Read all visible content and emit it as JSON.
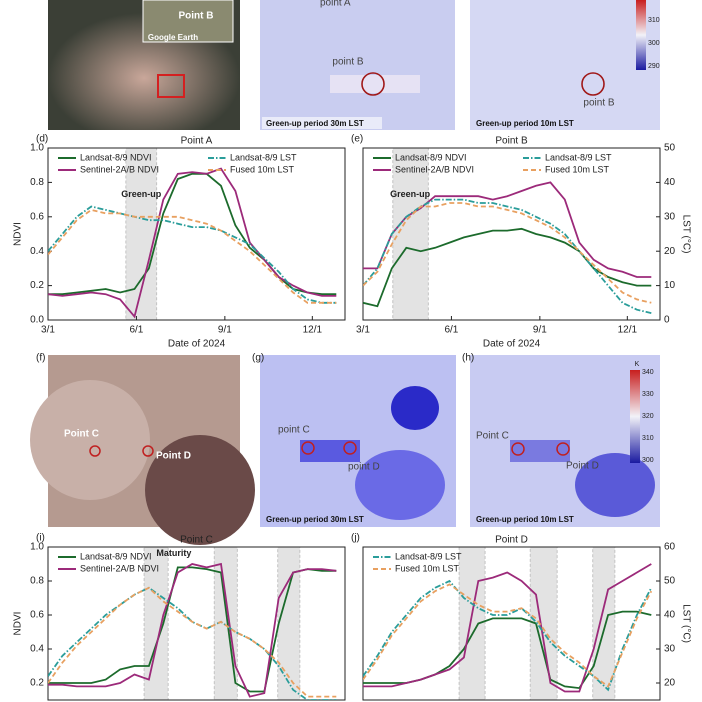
{
  "images": [
    {
      "labels": [
        "Point B",
        "Google Earth"
      ]
    },
    {
      "labels": [
        "point A",
        "point B",
        "Green-up period 30m LST"
      ]
    },
    {
      "labels": [
        "point B",
        "Green-up period 10m LST"
      ],
      "colorbar_ticks": [
        310,
        300,
        290
      ]
    },
    {
      "panel": "(f)",
      "labels": [
        "Point C",
        "Point D"
      ]
    },
    {
      "panel": "(g)",
      "labels": [
        "point C",
        "point D",
        "Green-up period 30m LST"
      ]
    },
    {
      "panel": "(h)",
      "labels": [
        "Point C",
        "Point D",
        "Green-up period 10m LST"
      ],
      "colorbar_unit": "K",
      "colorbar_ticks": [
        340,
        330,
        320,
        310,
        300
      ]
    }
  ],
  "chart_data": [
    {
      "type": "line",
      "panel": "(d)",
      "title": "Point A",
      "x_label": "Date of 2024",
      "y_label": "NDVI",
      "x": [
        61,
        76,
        91,
        106,
        121,
        136,
        151,
        166,
        181,
        196,
        211,
        226,
        241,
        256,
        271,
        286,
        301,
        316,
        331,
        346,
        361
      ],
      "xlim": [
        61,
        370
      ],
      "xticks": [
        {
          "value": 61,
          "label": "3/1"
        },
        {
          "value": 153,
          "label": "6/1"
        },
        {
          "value": 245,
          "label": "9/1"
        },
        {
          "value": 336,
          "label": "12/1"
        }
      ],
      "ylim": [
        0,
        1
      ],
      "yticks": [
        {
          "value": 0,
          "label": "0.0"
        },
        0.2,
        0.4,
        0.6,
        0.8,
        {
          "value": 1,
          "label": "1.0"
        }
      ],
      "y2lim": [
        0,
        50
      ],
      "shaded": [
        [
          142,
          174
        ]
      ],
      "annotations": [
        {
          "text": "Green-up",
          "x": 158,
          "y": 0.73
        }
      ],
      "series": [
        {
          "name": "Landsat-8/9 NDVI",
          "color": "#1c6b2c",
          "dash": "solid",
          "in_legend": true,
          "values": [
            0.15,
            0.15,
            0.16,
            0.17,
            0.18,
            0.16,
            0.18,
            0.3,
            0.62,
            0.82,
            0.85,
            0.85,
            0.78,
            0.55,
            0.42,
            0.35,
            0.25,
            0.18,
            0.16,
            0.15,
            0.15
          ]
        },
        {
          "name": "Sentinel-2A/B NDVI",
          "color": "#9c2a7a",
          "dash": "solid",
          "in_legend": true,
          "values": [
            0.15,
            0.14,
            0.15,
            0.16,
            0.15,
            0.12,
            0.02,
            0.35,
            0.7,
            0.85,
            0.86,
            0.85,
            0.88,
            0.75,
            0.45,
            0.35,
            0.25,
            0.2,
            0.16,
            0.14,
            0.14
          ]
        },
        {
          "name": "Landsat-8/9 LST",
          "color": "#2a9d9a",
          "dash": "dashdot",
          "axis": "y2",
          "in_legend": true,
          "values": [
            20,
            25,
            30,
            33,
            32,
            31,
            30,
            29,
            29,
            28,
            27,
            27,
            26,
            24,
            22,
            18,
            14,
            9,
            6,
            5,
            5
          ]
        },
        {
          "name": "Fused 10m LST",
          "color": "#e8a060",
          "dash": "dash",
          "axis": "y2",
          "in_legend": true,
          "values": [
            19,
            24,
            29,
            32,
            31,
            31,
            30,
            30,
            30,
            30,
            29,
            28,
            26,
            23,
            20,
            16,
            12,
            8,
            5,
            5,
            5
          ]
        }
      ]
    },
    {
      "type": "line",
      "panel": "(e)",
      "title": "Point B",
      "x_label": "Date of 2024",
      "y2_label": "LST (°C)",
      "x": [
        61,
        76,
        91,
        106,
        121,
        136,
        151,
        166,
        181,
        196,
        211,
        226,
        241,
        256,
        271,
        286,
        301,
        316,
        331,
        346,
        361
      ],
      "xlim": [
        61,
        370
      ],
      "xticks": [
        {
          "value": 61,
          "label": "3/1"
        },
        {
          "value": 153,
          "label": "6/1"
        },
        {
          "value": 245,
          "label": "9/1"
        },
        {
          "value": 336,
          "label": "12/1"
        }
      ],
      "ylim": [
        0,
        1
      ],
      "y2lim": [
        0,
        50
      ],
      "y2ticks": [
        0,
        10,
        20,
        30,
        40,
        50
      ],
      "shaded": [
        [
          92,
          129
        ]
      ],
      "annotations": [
        {
          "text": "Green-up",
          "x": 110,
          "y": 0.73
        }
      ],
      "series": [
        {
          "name": "Landsat-8/9 NDVI",
          "color": "#1c6b2c",
          "dash": "solid",
          "in_legend": true,
          "values": [
            0.1,
            0.08,
            0.3,
            0.42,
            0.4,
            0.42,
            0.45,
            0.48,
            0.5,
            0.52,
            0.52,
            0.53,
            0.5,
            0.48,
            0.45,
            0.4,
            0.3,
            0.25,
            0.22,
            0.2,
            0.2
          ]
        },
        {
          "name": "Sentinel-2A/B NDVI",
          "color": "#9c2a7a",
          "dash": "solid",
          "in_legend": true,
          "values": [
            0.3,
            0.3,
            0.5,
            0.6,
            0.65,
            0.72,
            0.72,
            0.72,
            0.72,
            0.7,
            0.72,
            0.75,
            0.78,
            0.8,
            0.7,
            0.45,
            0.35,
            0.3,
            0.28,
            0.25,
            0.25
          ]
        },
        {
          "name": "Landsat-8/9 LST",
          "color": "#2a9d9a",
          "dash": "dashdot",
          "axis": "y2",
          "in_legend": true,
          "values": [
            10,
            15,
            25,
            30,
            33,
            35,
            35,
            35,
            34,
            34,
            33,
            32,
            30,
            28,
            25,
            20,
            15,
            10,
            5,
            3,
            2
          ]
        },
        {
          "name": "Fused 10m LST",
          "color": "#e8a060",
          "dash": "dash",
          "axis": "y2",
          "in_legend": true,
          "values": [
            10,
            14,
            22,
            29,
            33,
            33,
            34,
            34,
            33,
            33,
            32,
            31,
            29,
            27,
            24,
            20,
            16,
            12,
            8,
            6,
            5
          ]
        }
      ]
    },
    {
      "type": "line",
      "panel": "(i)",
      "title": "Point C",
      "y_label": "NDVI",
      "x": [
        61,
        76,
        91,
        106,
        121,
        136,
        151,
        166,
        181,
        196,
        211,
        226,
        241,
        256,
        271,
        286,
        301,
        316,
        331,
        346,
        361
      ],
      "xlim": [
        61,
        370
      ],
      "ylim": [
        0.1,
        1
      ],
      "yticks": [
        0.2,
        0.4,
        0.6,
        0.8,
        {
          "value": 1,
          "label": "1.0"
        }
      ],
      "y2lim": [
        15,
        60
      ],
      "shaded": [
        [
          161,
          186
        ],
        [
          234,
          258
        ],
        [
          300,
          323
        ]
      ],
      "annotations": [
        {
          "text": "Maturity",
          "x": 192,
          "y": 0.96
        }
      ],
      "series": [
        {
          "name": "Landsat-8/9 NDVI",
          "color": "#1c6b2c",
          "dash": "solid",
          "in_legend": true,
          "values": [
            0.2,
            0.2,
            0.2,
            0.2,
            0.22,
            0.28,
            0.3,
            0.3,
            0.55,
            0.88,
            0.88,
            0.87,
            0.85,
            0.2,
            0.15,
            0.15,
            0.55,
            0.85,
            0.87,
            0.86,
            0.86
          ]
        },
        {
          "name": "Sentinel-2A/B NDVI",
          "color": "#9c2a7a",
          "dash": "solid",
          "in_legend": true,
          "values": [
            0.19,
            0.19,
            0.18,
            0.18,
            0.18,
            0.2,
            0.25,
            0.22,
            0.6,
            0.85,
            0.9,
            0.88,
            0.9,
            0.3,
            0.12,
            0.14,
            0.7,
            0.85,
            0.87,
            0.87,
            0.86
          ]
        },
        {
          "name": "Landsat-8/9 LST",
          "color": "#2a9d9a",
          "dash": "dashdot",
          "axis": "y2",
          "in_legend": false,
          "values": [
            22,
            28,
            32,
            36,
            40,
            43,
            46,
            48,
            45,
            42,
            38,
            36,
            38,
            35,
            33,
            30,
            25,
            18,
            15,
            15,
            15
          ]
        },
        {
          "name": "Fused 10m LST",
          "color": "#e8a060",
          "dash": "dash",
          "axis": "y2",
          "in_legend": false,
          "values": [
            20,
            26,
            31,
            35,
            39,
            43,
            46,
            48,
            44,
            41,
            38,
            36,
            38,
            35,
            33,
            30,
            26,
            20,
            16,
            16,
            16
          ]
        }
      ]
    },
    {
      "type": "line",
      "panel": "(j)",
      "title": "Point D",
      "y2_label": "LST (°C)",
      "x": [
        61,
        76,
        91,
        106,
        121,
        136,
        151,
        166,
        181,
        196,
        211,
        226,
        241,
        256,
        271,
        286,
        301,
        316,
        331,
        346,
        361
      ],
      "xlim": [
        61,
        370
      ],
      "ylim": [
        0.1,
        1
      ],
      "y2lim": [
        15,
        60
      ],
      "y2ticks": [
        20,
        30,
        40,
        50,
        60
      ],
      "shaded": [
        [
          161,
          188
        ],
        [
          235,
          263
        ],
        [
          300,
          323
        ]
      ],
      "series": [
        {
          "name": "Landsat-8/9 NDVI",
          "color": "#1c6b2c",
          "dash": "solid",
          "in_legend": false,
          "values": [
            0.2,
            0.2,
            0.2,
            0.2,
            0.22,
            0.25,
            0.3,
            0.4,
            0.55,
            0.58,
            0.58,
            0.58,
            0.55,
            0.22,
            0.18,
            0.17,
            0.3,
            0.6,
            0.62,
            0.62,
            0.6
          ]
        },
        {
          "name": "Sentinel-2A/B NDVI",
          "color": "#9c2a7a",
          "dash": "solid",
          "in_legend": false,
          "values": [
            0.18,
            0.18,
            0.18,
            0.2,
            0.22,
            0.25,
            0.28,
            0.35,
            0.8,
            0.82,
            0.85,
            0.8,
            0.72,
            0.2,
            0.15,
            0.15,
            0.4,
            0.75,
            0.8,
            0.85,
            0.9
          ]
        },
        {
          "name": "Landsat-8/9 LST",
          "color": "#2a9d9a",
          "dash": "dashdot",
          "axis": "y2",
          "in_legend": true,
          "values": [
            22,
            28,
            35,
            40,
            45,
            48,
            50,
            45,
            42,
            40,
            40,
            42,
            38,
            32,
            28,
            25,
            22,
            18,
            30,
            40,
            48
          ]
        },
        {
          "name": "Fused 10m LST",
          "color": "#e8a060",
          "dash": "dash",
          "axis": "y2",
          "in_legend": true,
          "values": [
            21,
            27,
            34,
            39,
            44,
            47,
            49,
            46,
            43,
            41,
            41,
            42,
            39,
            33,
            29,
            26,
            22,
            19,
            29,
            39,
            47
          ]
        }
      ]
    }
  ]
}
